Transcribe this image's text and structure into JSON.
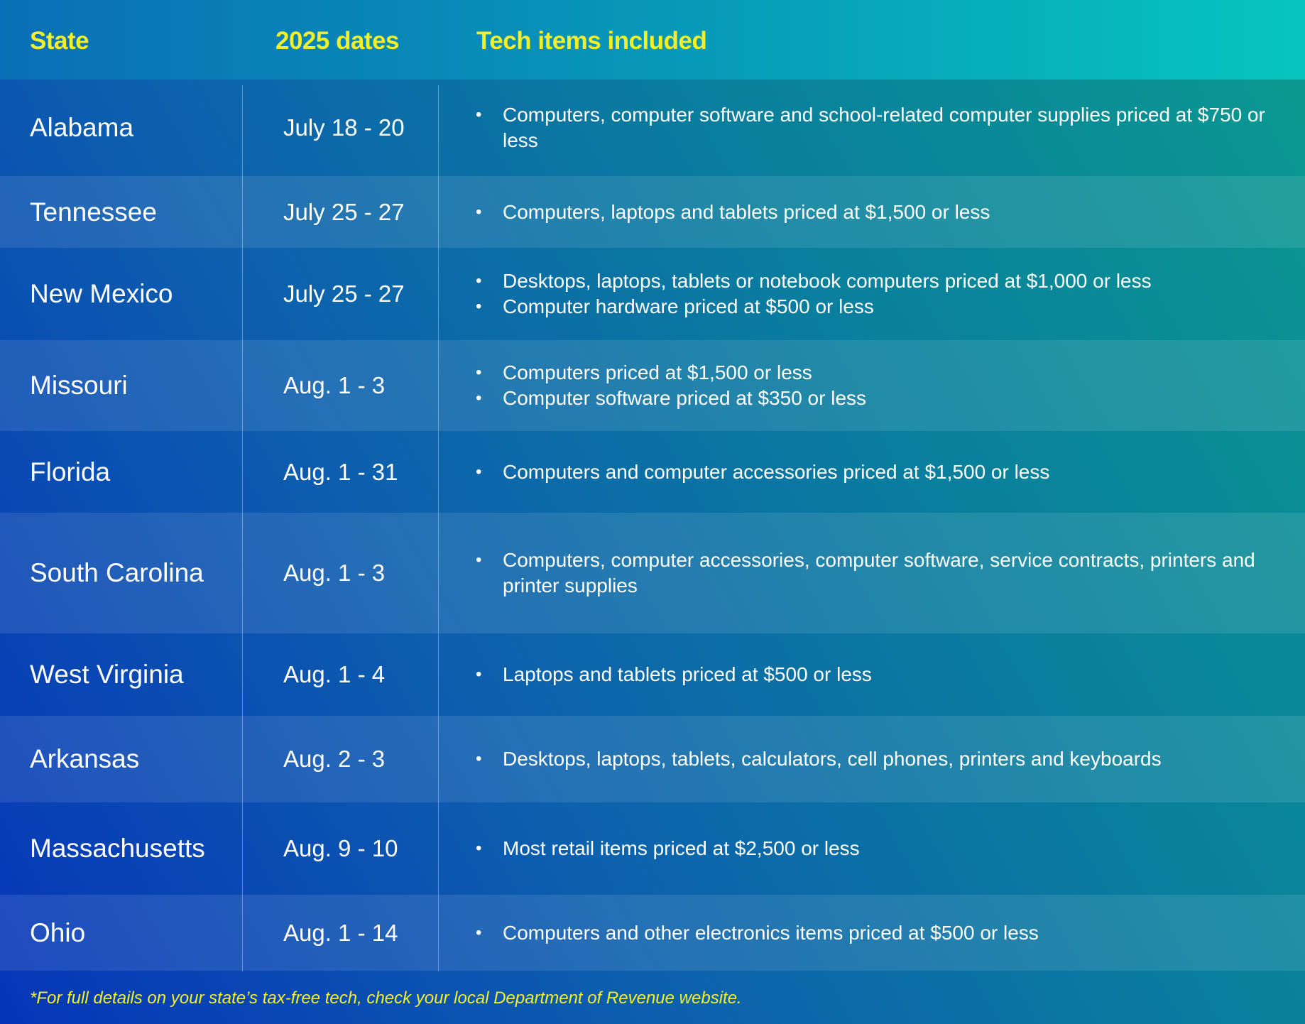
{
  "header": {
    "state": "State",
    "dates": "2025 dates",
    "items": "Tech items included"
  },
  "rows": [
    {
      "state": "Alabama",
      "dates": "July 18 - 20",
      "items": [
        "Computers, computer software and school-related computer supplies priced at $750 or less"
      ]
    },
    {
      "state": "Tennessee",
      "dates": "July 25 - 27",
      "items": [
        "Computers, laptops and tablets priced at $1,500 or less"
      ]
    },
    {
      "state": "New Mexico",
      "dates": "July 25 - 27",
      "items": [
        "Desktops, laptops, tablets or notebook computers priced at $1,000 or less",
        "Computer hardware priced at $500 or less"
      ]
    },
    {
      "state": "Missouri",
      "dates": "Aug. 1 - 3",
      "items": [
        "Computers priced at $1,500 or less",
        "Computer software priced at $350 or less"
      ]
    },
    {
      "state": "Florida",
      "dates": "Aug. 1 - 31",
      "items": [
        "Computers and computer accessories priced at $1,500 or less"
      ]
    },
    {
      "state": "South Carolina",
      "dates": "Aug. 1 - 3",
      "items": [
        "Computers, computer accessories, computer software, service contracts, printers and printer supplies"
      ]
    },
    {
      "state": "West Virginia",
      "dates": "Aug. 1 - 4",
      "items": [
        "Laptops and tablets priced at $500 or less"
      ]
    },
    {
      "state": "Arkansas",
      "dates": "Aug. 2 - 3",
      "items": [
        "Desktops, laptops, tablets, calculators, cell phones, printers and keyboards"
      ]
    },
    {
      "state": "Massachusetts",
      "dates": "Aug. 9 - 10",
      "items": [
        "Most retail items priced at $2,500 or less"
      ]
    },
    {
      "state": "Ohio",
      "dates": "Aug. 1 - 14",
      "items": [
        "Computers and other electronics items priced at $500 or less"
      ]
    }
  ],
  "bullet_glyph": "•",
  "footnote": "*For full details on your state’s tax-free tech, check your local Department of Revenue website.",
  "colors": {
    "header_text": "#f0ef2a",
    "body_text": "#ffffff",
    "footnote_text": "#f0ef2a"
  }
}
